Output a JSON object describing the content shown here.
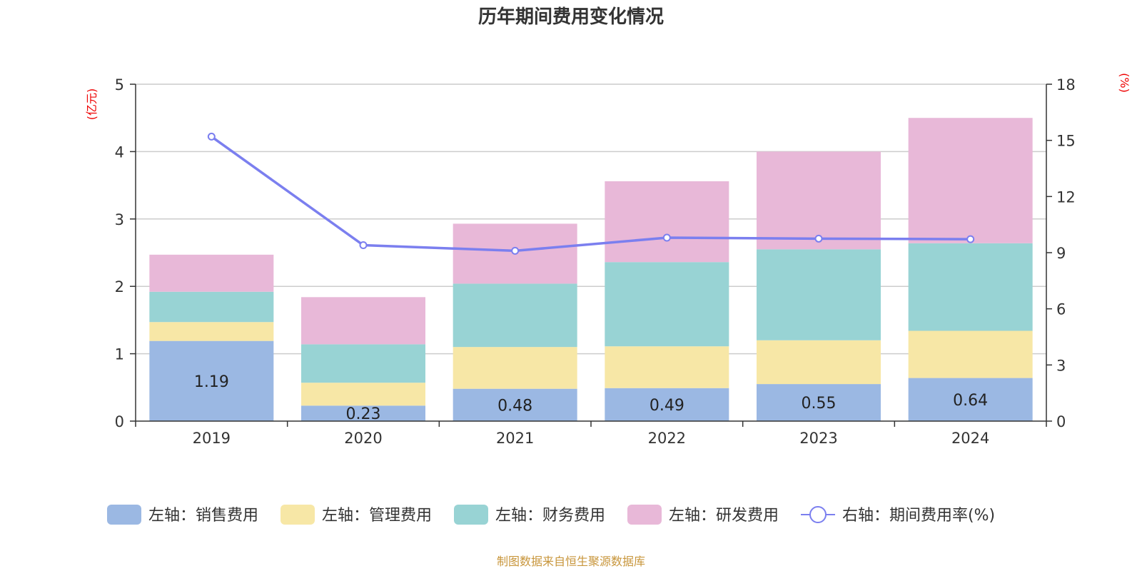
{
  "chart_data": {
    "type": "bar",
    "title": "历年期间费用变化情况",
    "left_unit": "(亿元)",
    "right_unit": "(%)",
    "categories": [
      "2019",
      "2020",
      "2021",
      "2022",
      "2023",
      "2024"
    ],
    "y_left": {
      "min": 0,
      "max": 5,
      "ticks": [
        "0",
        "1",
        "2",
        "3",
        "4",
        "5"
      ]
    },
    "y_right": {
      "min": 0,
      "max": 18,
      "ticks": [
        "0",
        "3",
        "6",
        "9",
        "12",
        "15",
        "18"
      ]
    },
    "stacked": true,
    "grid": true,
    "legend_position": "bottom",
    "series": [
      {
        "name": "左轴：销售费用",
        "type": "bar",
        "axis": "left",
        "color": "#9bb8e3",
        "values": [
          1.19,
          0.23,
          0.48,
          0.49,
          0.55,
          0.64
        ],
        "labels": [
          "1.19",
          "0.23",
          "0.48",
          "0.49",
          "0.55",
          "0.64"
        ]
      },
      {
        "name": "左轴：管理费用",
        "type": "bar",
        "axis": "left",
        "color": "#f7e7a6",
        "values": [
          0.28,
          0.34,
          0.62,
          0.62,
          0.65,
          0.7
        ]
      },
      {
        "name": "左轴：财务费用",
        "type": "bar",
        "axis": "left",
        "color": "#98d3d4",
        "values": [
          0.45,
          0.57,
          0.94,
          1.25,
          1.35,
          1.3
        ]
      },
      {
        "name": "左轴：研发费用",
        "type": "bar",
        "axis": "left",
        "color": "#e8b8d8",
        "values": [
          0.55,
          0.7,
          0.89,
          1.2,
          1.45,
          1.86
        ]
      },
      {
        "name": "右轴：期间费用率(%)",
        "type": "line",
        "axis": "right",
        "color": "#7b7fef",
        "values": [
          15.2,
          9.4,
          9.1,
          9.8,
          9.75,
          9.72
        ]
      }
    ]
  },
  "footer": {
    "source": "制图数据来自恒生聚源数据库"
  }
}
